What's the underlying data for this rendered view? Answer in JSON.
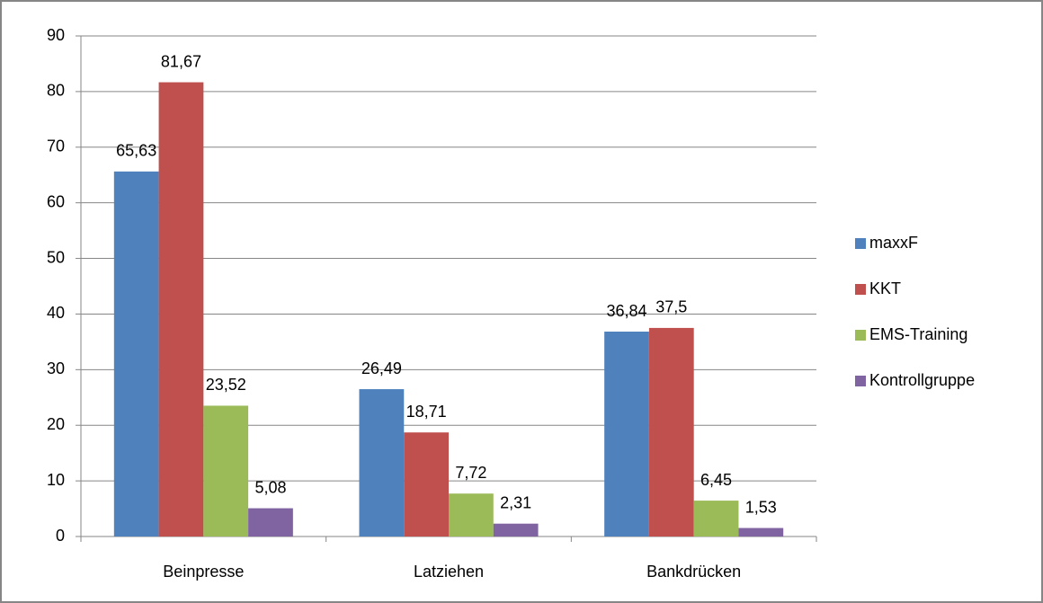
{
  "chart_data": {
    "type": "bar",
    "categories": [
      "Beinpresse",
      "Latziehen",
      "Bankdrücken"
    ],
    "series": [
      {
        "name": "maxxF",
        "color": "#4f81bd",
        "values": [
          65.63,
          26.49,
          36.84
        ],
        "value_labels": [
          "65,63",
          "26,49",
          "36,84"
        ]
      },
      {
        "name": "KKT",
        "color": "#c0504d",
        "values": [
          81.67,
          18.71,
          37.5
        ],
        "value_labels": [
          "81,67",
          "18,71",
          "37,5"
        ]
      },
      {
        "name": "EMS-Training",
        "color": "#9bbb59",
        "values": [
          23.52,
          7.72,
          6.45
        ],
        "value_labels": [
          "23,52",
          "7,72",
          "6,45"
        ]
      },
      {
        "name": "Kontrollgruppe",
        "color": "#8064a2",
        "values": [
          5.08,
          2.31,
          1.53
        ],
        "value_labels": [
          "5,08",
          "2,31",
          "1,53"
        ]
      }
    ],
    "ylim": [
      0,
      90
    ],
    "yticks": [
      0,
      10,
      20,
      30,
      40,
      50,
      60,
      70,
      80,
      90
    ],
    "grid": true,
    "legend": "right"
  }
}
